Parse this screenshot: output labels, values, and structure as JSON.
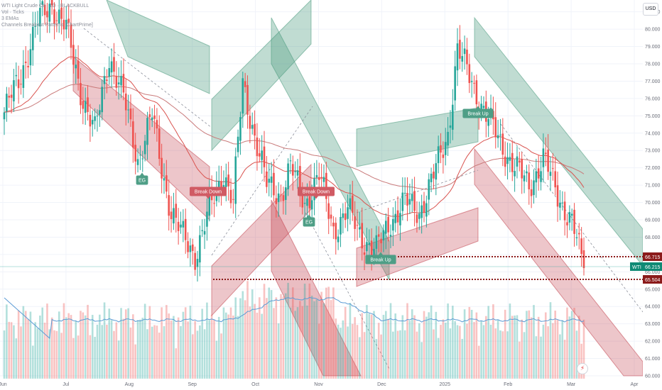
{
  "legend": {
    "title": "WTI Light Crude Oil · 1D · BLACKBULL",
    "volume": "Vol · Ticks",
    "ema": "3 EMAs",
    "channels": "Channels Breakout Patterns [ChartPrime]"
  },
  "currency": "USD",
  "price_axis": {
    "ticks": [
      "81.000",
      "80.000",
      "79.000",
      "78.000",
      "77.000",
      "76.000",
      "75.000",
      "74.000",
      "73.000",
      "72.000",
      "71.000",
      "70.000",
      "69.000",
      "68.000",
      "67.000",
      "66.000",
      "65.000",
      "64.000",
      "63.000",
      "62.000",
      "61.000",
      "60.000"
    ],
    "tick_values": [
      81,
      80,
      79,
      78,
      77,
      76,
      75,
      74,
      73,
      72,
      71,
      70,
      69,
      68,
      67,
      66,
      65,
      64,
      63,
      62,
      61,
      60
    ],
    "ylim": [
      60.0,
      81.6
    ]
  },
  "time_axis": {
    "labels": [
      "Jun",
      "Jul",
      "Aug",
      "Sep",
      "Oct",
      "Nov",
      "Dec",
      "2025",
      "Feb",
      "Mar",
      "Apr"
    ]
  },
  "price_tags": {
    "upper_level": "66.715",
    "current_symbol": "WTI",
    "current_price": "66.215",
    "lower_level": "65.504"
  },
  "levels": {
    "upper": 66.715,
    "current": 66.215,
    "lower": 65.504
  },
  "markers": [
    {
      "label": "EG",
      "type": "up",
      "color": "#4e9e86"
    },
    {
      "label": "Break Down",
      "type": "down",
      "color": "#d05b64"
    },
    {
      "label": "Break Down",
      "type": "down",
      "color": "#d05b64"
    },
    {
      "label": "EG",
      "type": "up",
      "color": "#4e9e86"
    },
    {
      "label": "Break Up",
      "type": "up",
      "color": "#4e9e86"
    },
    {
      "label": "Break Up",
      "type": "up",
      "color": "#4e9e86"
    }
  ],
  "colors": {
    "bull": "#26a69a",
    "bear": "#ef5350",
    "channel_green": "#4a9b7d",
    "channel_red": "#c2434f",
    "ema_long": "#c97a7a",
    "ema_short": "#d9534f",
    "vol_ma": "#5b9bd5",
    "level_dots": "#8b1a1a"
  },
  "icons": {
    "lightning": "lightning-icon"
  },
  "chart_data": {
    "type": "candlestick",
    "symbol": "WTI",
    "currency": "USD",
    "x": [
      "Jun",
      "Jul",
      "Aug",
      "Sep",
      "Oct",
      "Nov",
      "Dec",
      "2025",
      "Feb",
      "Mar",
      "Apr"
    ],
    "approx_close_path": [
      [
        0,
        75.2
      ],
      [
        6,
        77.0
      ],
      [
        14,
        80.4
      ],
      [
        20,
        81.5
      ],
      [
        26,
        80.0
      ],
      [
        32,
        76.5
      ],
      [
        38,
        74.0
      ],
      [
        44,
        78.5
      ],
      [
        50,
        76.0
      ],
      [
        56,
        72.5
      ],
      [
        62,
        75.0
      ],
      [
        66,
        72.0
      ],
      [
        70,
        69.5
      ],
      [
        74,
        68.2
      ],
      [
        80,
        67.0
      ],
      [
        86,
        69.5
      ],
      [
        92,
        71.8
      ],
      [
        96,
        70.0
      ],
      [
        100,
        76.8
      ],
      [
        104,
        74.5
      ],
      [
        110,
        71.0
      ],
      [
        116,
        70.5
      ],
      [
        120,
        72.0
      ],
      [
        126,
        70.0
      ],
      [
        132,
        71.5
      ],
      [
        138,
        68.5
      ],
      [
        144,
        69.5
      ],
      [
        150,
        68.0
      ],
      [
        156,
        67.2
      ],
      [
        162,
        69.0
      ],
      [
        168,
        70.0
      ],
      [
        174,
        69.5
      ],
      [
        180,
        71.5
      ],
      [
        186,
        74.0
      ],
      [
        190,
        78.8
      ],
      [
        196,
        77.0
      ],
      [
        202,
        75.0
      ],
      [
        208,
        73.5
      ],
      [
        214,
        72.0
      ],
      [
        220,
        71.0
      ],
      [
        226,
        72.5
      ],
      [
        232,
        70.5
      ],
      [
        238,
        68.8
      ],
      [
        243,
        66.2
      ]
    ],
    "levels": {
      "upper": 66.715,
      "current": 66.215,
      "lower": 65.504
    },
    "ylim": [
      60.0,
      81.6
    ]
  }
}
